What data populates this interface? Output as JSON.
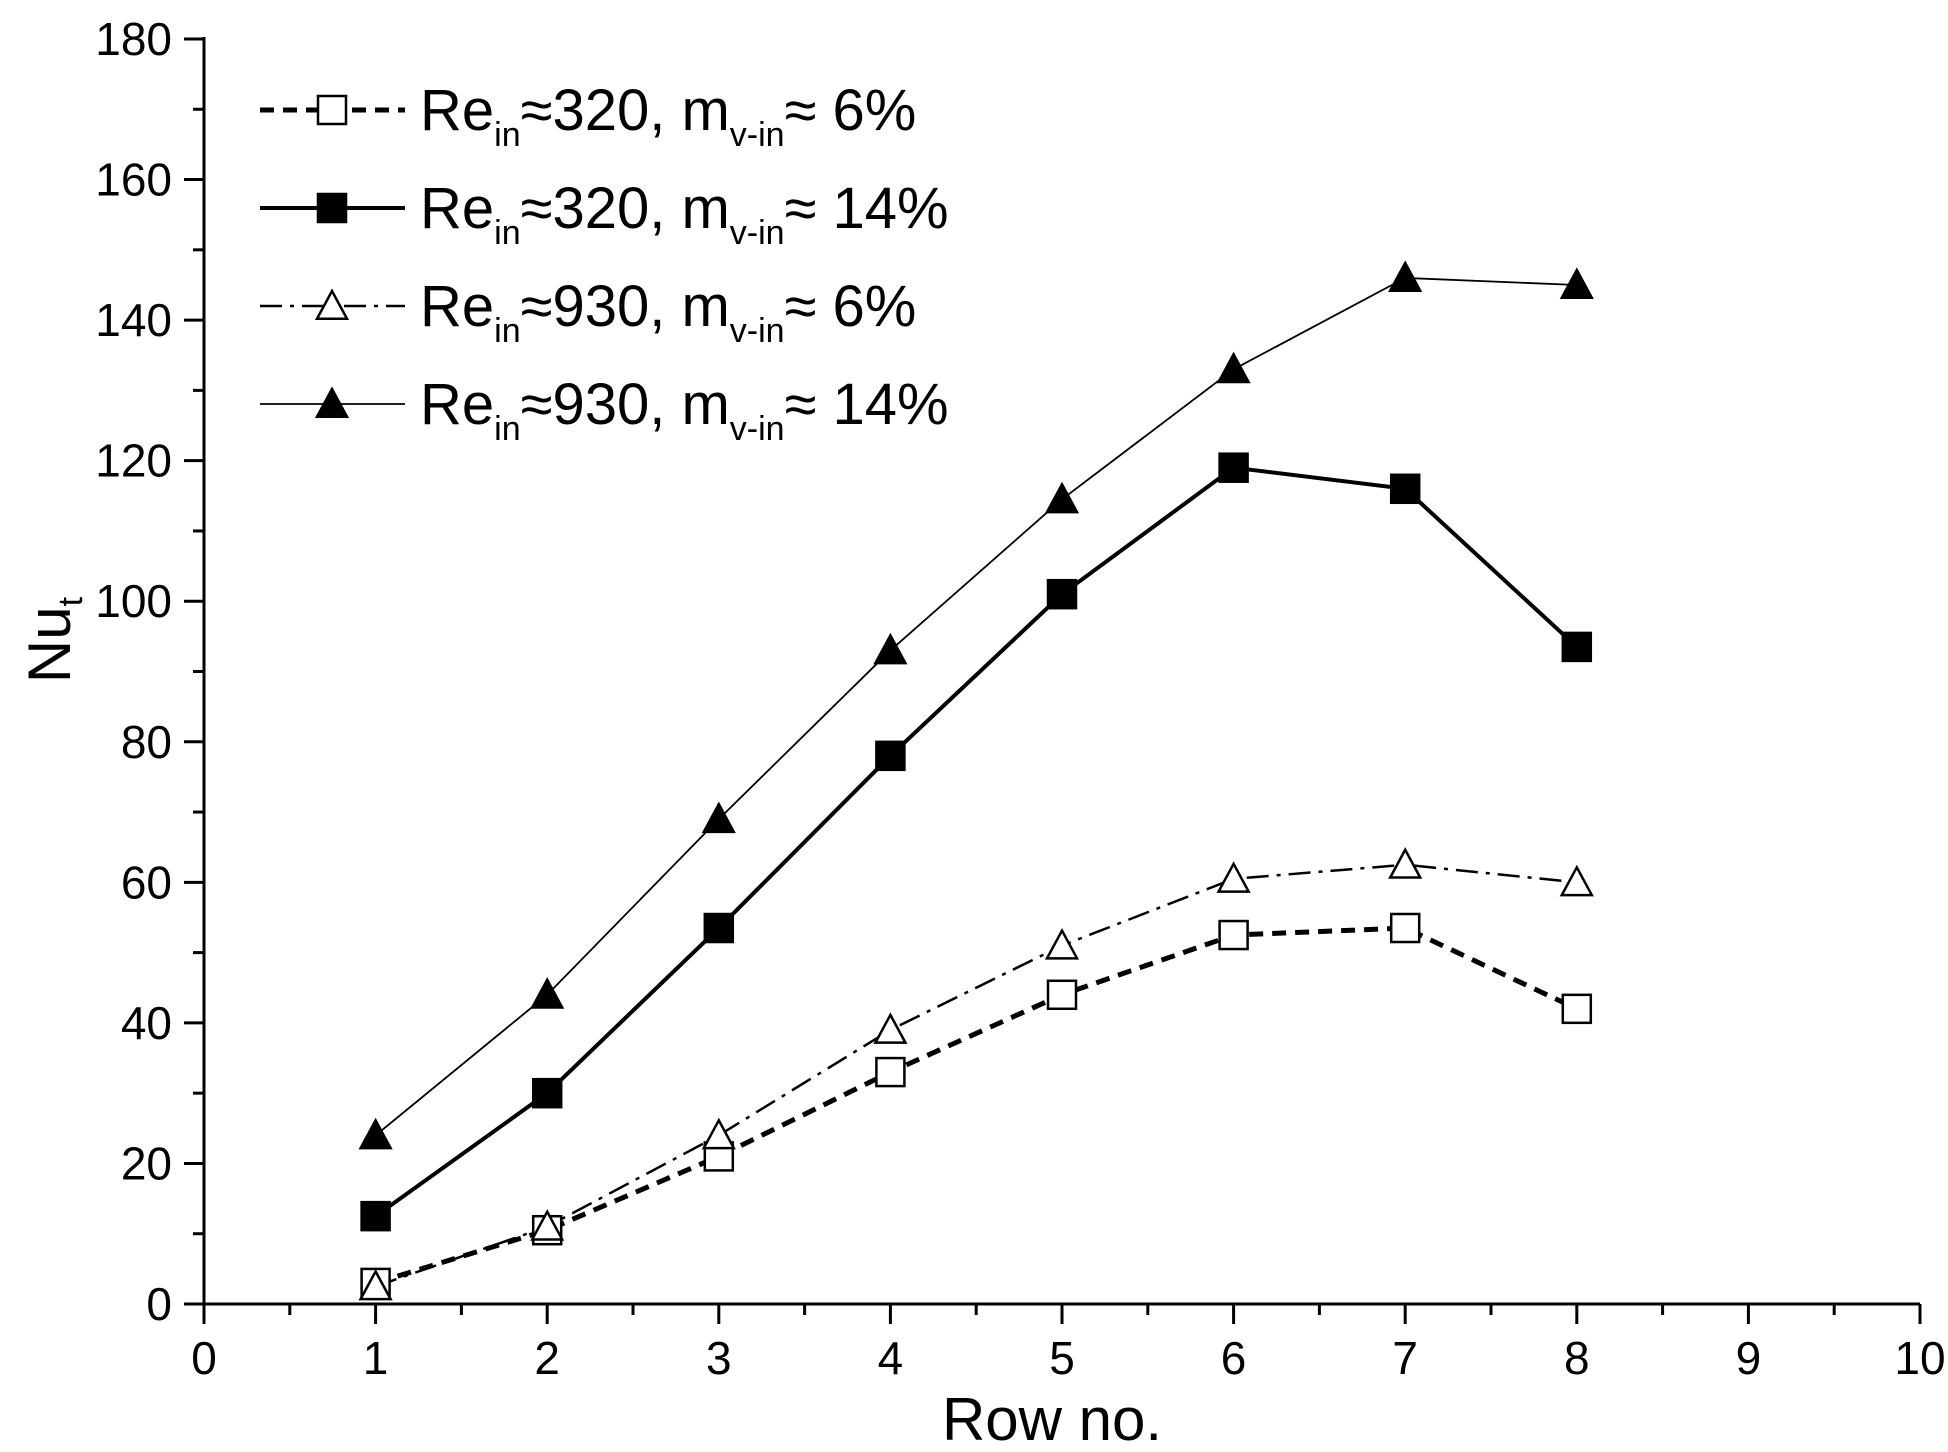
{
  "chart_data": {
    "type": "line",
    "xlabel": "Row no.",
    "ylabel": {
      "base": "Nu",
      "sub": "t"
    },
    "xlim": [
      0,
      10
    ],
    "ylim": [
      0,
      180
    ],
    "xticks": [
      "0",
      "1",
      "2",
      "3",
      "4",
      "5",
      "6",
      "7",
      "8",
      "9",
      "10"
    ],
    "yticks": [
      "0",
      "20",
      "40",
      "60",
      "80",
      "100",
      "120",
      "140",
      "160",
      "180"
    ],
    "grid": false,
    "legend_position": "top-left",
    "x": [
      1,
      2,
      3,
      4,
      5,
      6,
      7,
      8
    ],
    "series": [
      {
        "legend": {
          "pre": "Re",
          "sub1": "in",
          "mid": "≈320, m",
          "sub2": "v-in",
          "post": "≈ 6%"
        },
        "marker": "square-open",
        "line": "dashed",
        "values": [
          3,
          10.5,
          21,
          33,
          44,
          52.5,
          53.5,
          42
        ]
      },
      {
        "legend": {
          "pre": "Re",
          "sub1": "in",
          "mid": "≈320, m",
          "sub2": "v-in",
          "post": "≈ 14%"
        },
        "marker": "square-filled",
        "line": "solid-thick",
        "values": [
          12.5,
          30,
          53.5,
          78,
          101,
          119,
          116,
          93.5
        ]
      },
      {
        "legend": {
          "pre": "Re",
          "sub1": "in",
          "mid": "≈930, m",
          "sub2": "v-in",
          "post": "≈ 6%"
        },
        "marker": "triangle-open",
        "line": "dashdot",
        "values": [
          2.5,
          11,
          24,
          39,
          51,
          60.5,
          62.5,
          60
        ]
      },
      {
        "legend": {
          "pre": "Re",
          "sub1": "in",
          "mid": "≈930, m",
          "sub2": "v-in",
          "post": "≈ 14%"
        },
        "marker": "triangle-filled",
        "line": "solid-thin",
        "values": [
          24,
          44,
          69,
          93,
          114.5,
          133,
          146,
          145
        ]
      }
    ]
  }
}
